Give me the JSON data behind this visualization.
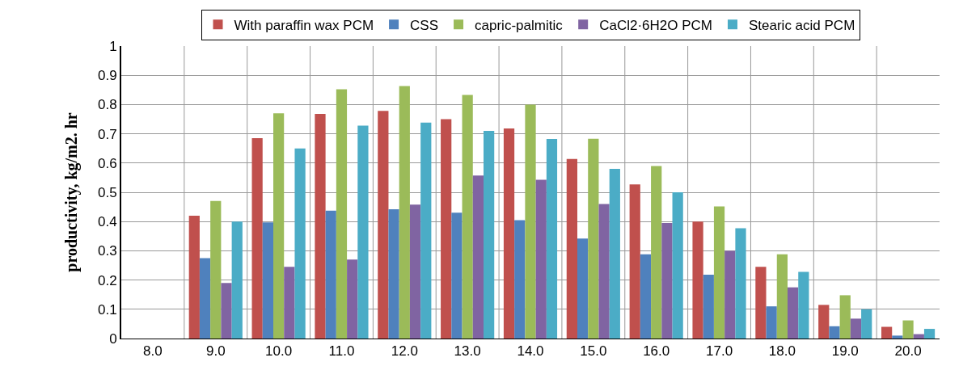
{
  "chart_data": {
    "type": "bar",
    "ylabel": "productivity, kg/m2. hr",
    "categories": [
      "8.0",
      "9.0",
      "10.0",
      "11.0",
      "12.0",
      "13.0",
      "14.0",
      "15.0",
      "16.0",
      "17.0",
      "18.0",
      "19.0",
      "20.0"
    ],
    "series": [
      {
        "name": "With paraffin wax PCM",
        "color": "#c0504d",
        "values": [
          0,
          0.42,
          0.685,
          0.768,
          0.778,
          0.75,
          0.718,
          0.614,
          0.527,
          0.4,
          0.245,
          0.115,
          0.04
        ]
      },
      {
        "name": "CSS",
        "color": "#4f81bd",
        "values": [
          0,
          0.275,
          0.397,
          0.437,
          0.442,
          0.43,
          0.405,
          0.342,
          0.288,
          0.218,
          0.11,
          0.042,
          0.01
        ]
      },
      {
        "name": "capric-palmitic",
        "color": "#9bbb59",
        "values": [
          0,
          0.47,
          0.77,
          0.852,
          0.863,
          0.833,
          0.8,
          0.683,
          0.59,
          0.452,
          0.288,
          0.148,
          0.062
        ]
      },
      {
        "name": "CaCl2·6H2O PCM",
        "color": "#8064a2",
        "values": [
          0,
          0.19,
          0.245,
          0.27,
          0.458,
          0.557,
          0.543,
          0.46,
          0.395,
          0.3,
          0.175,
          0.068,
          0.015
        ]
      },
      {
        "name": "Stearic acid PCM",
        "color": "#4bacc6",
        "values": [
          0,
          0.4,
          0.65,
          0.728,
          0.738,
          0.71,
          0.682,
          0.58,
          0.5,
          0.377,
          0.228,
          0.1,
          0.033
        ]
      }
    ],
    "ylim": [
      0,
      1
    ],
    "yticks": [
      0,
      0.1,
      0.2,
      0.3,
      0.4,
      0.5,
      0.6,
      0.7,
      0.8,
      0.9,
      1
    ],
    "grid": true,
    "legend": "top"
  }
}
